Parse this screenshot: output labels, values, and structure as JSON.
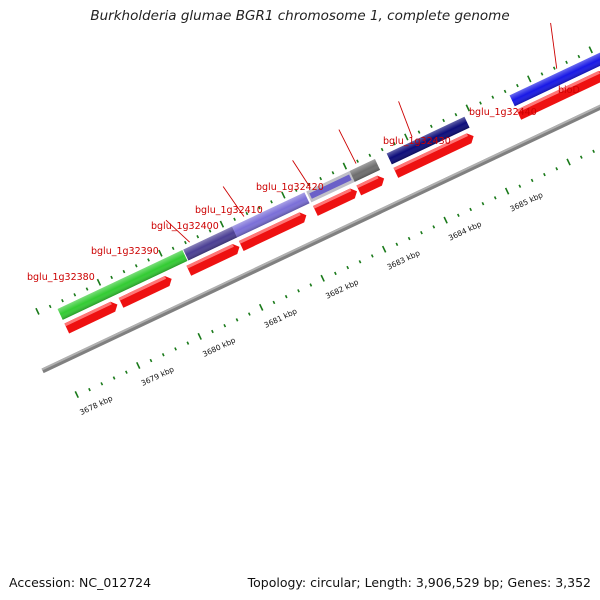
{
  "title": "Burkholderia glumae BGR1 chromosome 1, complete genome",
  "footer": {
    "accession": "Accession: NC_012724",
    "summary": "Topology: circular; Length: 3,906,529 bp; Genes: 3,352"
  },
  "genes": [
    {
      "name": "bglu_1g32380",
      "color": "#4b3f94"
    },
    {
      "name": "bglu_1g32390",
      "color": "#7b6fd8"
    },
    {
      "name": "bglu_1g32400",
      "color": "#6a60c8"
    },
    {
      "name": "bglu_1g32410",
      "color": "#6e6e6e"
    },
    {
      "name": "bglu_1g32420",
      "color": "#0c0c7a"
    },
    {
      "name": "bglu_1g32430",
      "color": "#1818e6"
    },
    {
      "name": "bglu_1g32440",
      "color": "#1818e6"
    },
    {
      "name": "bioD",
      "color": "#1818e6"
    }
  ],
  "kbp_labels": [
    "3678 kbp",
    "3679 kbp",
    "3680 kbp",
    "3681 kbp",
    "3682 kbp",
    "3683 kbp",
    "3684 kbp",
    "3685 kbp"
  ],
  "colors": {
    "cds": "#ee1111",
    "backbone": "#808080",
    "green_gene": "#33cc33",
    "tick": "#1a7a1a"
  }
}
